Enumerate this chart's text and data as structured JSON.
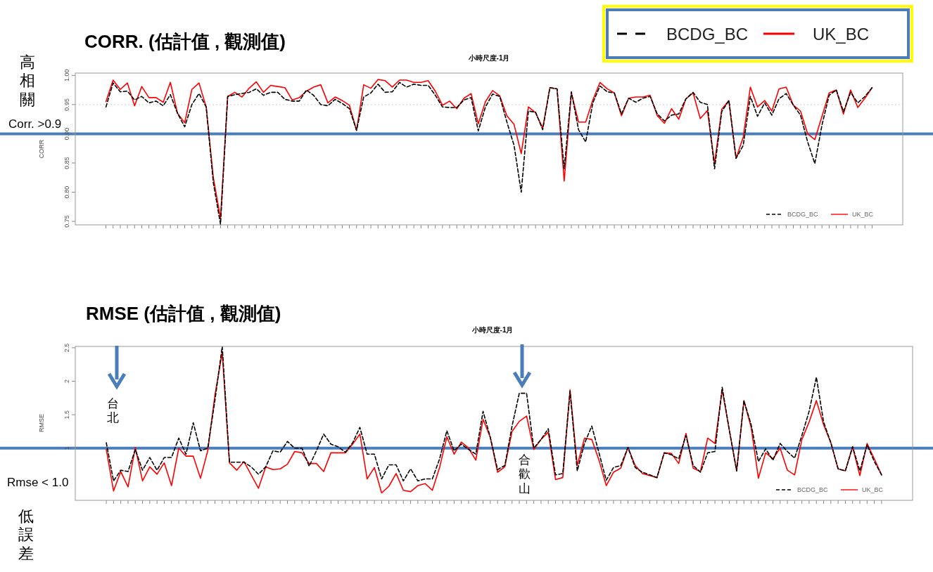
{
  "chart_data": [
    {
      "type": "line",
      "title": "CORR. (估計值 , 觀測值)",
      "subtitle": "小時尺度-1月",
      "ylabel": "CORR",
      "categories": [
        null,
        null,
        null,
        null,
        null,
        null,
        null,
        null,
        null,
        null,
        null,
        null,
        null,
        null,
        null,
        null,
        null,
        null,
        null,
        null,
        null,
        null,
        null,
        null,
        null,
        null,
        null,
        null,
        null,
        null,
        null,
        null,
        null,
        null,
        null,
        null,
        null,
        null,
        null,
        null,
        null,
        null,
        null,
        null,
        null,
        null,
        null,
        null,
        null,
        null,
        null,
        null,
        null,
        null,
        null,
        null,
        null,
        null,
        null,
        null,
        null,
        null,
        null,
        null,
        null,
        null,
        null,
        null,
        null,
        null,
        null,
        null,
        null,
        null,
        null,
        null,
        null,
        null,
        null,
        null,
        null,
        null,
        null,
        null,
        null,
        null,
        null,
        null,
        null,
        null,
        null,
        null,
        null,
        null,
        null,
        null,
        null,
        null,
        null,
        null,
        null,
        null,
        null,
        null,
        null,
        null,
        null,
        null
      ],
      "series": [
        {
          "name": "BCDG_BC",
          "color": "#000000",
          "line_style": "dashed",
          "values": [
            0.946,
            0.987,
            0.972,
            0.973,
            0.958,
            0.964,
            0.953,
            0.956,
            0.948,
            0.967,
            0.935,
            0.912,
            0.95,
            0.969,
            0.946,
            0.816,
            0.745,
            0.964,
            0.967,
            0.969,
            0.971,
            0.977,
            0.966,
            0.971,
            0.971,
            0.959,
            0.956,
            0.956,
            0.975,
            0.966,
            0.95,
            0.948,
            0.959,
            0.952,
            0.943,
            0.906,
            0.963,
            0.97,
            0.985,
            0.971,
            0.972,
            0.988,
            0.98,
            0.985,
            0.983,
            0.983,
            0.966,
            0.946,
            0.945,
            0.945,
            0.958,
            0.962,
            0.905,
            0.946,
            0.968,
            0.964,
            0.92,
            0.88,
            0.8,
            0.939,
            0.937,
            0.907,
            0.979,
            0.977,
            0.84,
            0.972,
            0.907,
            0.886,
            0.953,
            0.982,
            0.972,
            0.97,
            0.934,
            0.961,
            0.954,
            0.961,
            0.964,
            0.934,
            0.922,
            0.932,
            0.934,
            0.96,
            0.971,
            0.954,
            0.95,
            0.84,
            0.938,
            0.957,
            0.858,
            0.88,
            0.964,
            0.93,
            0.953,
            0.932,
            0.96,
            0.969,
            0.949,
            0.932,
            0.886,
            0.849,
            0.915,
            0.966,
            0.975,
            0.938,
            0.971,
            0.953,
            0.964,
            0.979
          ]
        },
        {
          "name": "UK_BC",
          "color": "#ff0000",
          "line_style": "solid",
          "values": [
            0.955,
            0.992,
            0.976,
            0.987,
            0.948,
            0.981,
            0.962,
            0.962,
            0.954,
            0.988,
            0.935,
            0.919,
            0.976,
            0.987,
            0.946,
            0.825,
            0.755,
            0.964,
            0.971,
            0.963,
            0.978,
            0.989,
            0.971,
            0.983,
            0.981,
            0.979,
            0.958,
            0.962,
            0.973,
            0.98,
            0.984,
            0.953,
            0.963,
            0.957,
            0.949,
            0.906,
            0.984,
            0.978,
            0.993,
            0.991,
            0.98,
            0.992,
            0.992,
            0.988,
            0.988,
            0.991,
            0.973,
            0.949,
            0.956,
            0.943,
            0.961,
            0.969,
            0.917,
            0.955,
            0.974,
            0.965,
            0.931,
            0.916,
            0.866,
            0.946,
            0.936,
            0.91,
            0.979,
            0.977,
            0.819,
            0.97,
            0.92,
            0.92,
            0.958,
            0.988,
            0.977,
            0.97,
            0.931,
            0.961,
            0.963,
            0.963,
            0.966,
            0.931,
            0.918,
            0.943,
            0.925,
            0.96,
            0.97,
            0.926,
            0.94,
            0.849,
            0.942,
            0.957,
            0.858,
            0.894,
            0.98,
            0.946,
            0.957,
            0.939,
            0.977,
            0.98,
            0.949,
            0.939,
            0.9,
            0.89,
            0.93,
            0.97,
            0.975,
            0.934,
            0.975,
            0.945,
            0.961,
            0.979
          ]
        }
      ],
      "ylim": [
        0.744,
        1.004
      ],
      "yticks": [
        0.75,
        {
          "value": 0.8,
          "label": "0.80"
        },
        0.85,
        {
          "value": 0.9,
          "label": "0.90"
        },
        0.95,
        {
          "value": 1.0,
          "label": "1.00"
        }
      ],
      "ref_lines": [
        {
          "axis": "y",
          "value": 0.95,
          "color": "#cccccc",
          "line_style": "dotted"
        },
        {
          "axis": "y",
          "value": 0.9,
          "label": "Corr. >0.9",
          "color": "#4a7ebb",
          "line_style": "solid"
        }
      ],
      "annotations": [
        "高相關"
      ],
      "legend": "bottom right",
      "grid": false
    },
    {
      "type": "line",
      "title": "RMSE (估計值 , 觀測值)",
      "subtitle": "小時尺度-1月",
      "ylabel": "RMSE",
      "categories": [
        null,
        null,
        null,
        null,
        null,
        null,
        null,
        null,
        null,
        null,
        null,
        null,
        null,
        null,
        null,
        null,
        null,
        null,
        null,
        null,
        null,
        null,
        null,
        null,
        null,
        null,
        null,
        null,
        null,
        null,
        null,
        null,
        null,
        null,
        null,
        null,
        null,
        null,
        null,
        null,
        null,
        null,
        null,
        null,
        null,
        null,
        null,
        null,
        null,
        null,
        null,
        null,
        null,
        null,
        null,
        null,
        null,
        null,
        null,
        null,
        null,
        null,
        null,
        null,
        null,
        null,
        null,
        null,
        null,
        null,
        null,
        null,
        null,
        null,
        null,
        null,
        null,
        null,
        null,
        null,
        null,
        null,
        null,
        null,
        null,
        null,
        null,
        null,
        null,
        null,
        null,
        null,
        null,
        null,
        null,
        null,
        null,
        null,
        null,
        null,
        null,
        null,
        null,
        null,
        null,
        null,
        null,
        null
      ],
      "series": [
        {
          "name": "BCDG_BC",
          "color": "#000000",
          "line_style": "dashed",
          "values": [
            1.08,
            0.51,
            0.67,
            0.65,
            0.98,
            0.67,
            0.86,
            0.67,
            0.86,
            0.86,
            1.15,
            0.91,
            1.38,
            0.96,
            1.0,
            1.72,
            2.52,
            0.79,
            0.79,
            0.79,
            0.72,
            0.61,
            0.72,
            0.96,
            0.94,
            1.1,
            1.0,
            1.0,
            0.73,
            0.96,
            1.21,
            1.06,
            1.02,
            0.94,
            1.08,
            1.31,
            0.91,
            0.91,
            0.54,
            0.75,
            0.75,
            0.51,
            0.69,
            0.51,
            0.54,
            0.54,
            0.84,
            1.26,
            0.96,
            1.06,
            0.98,
            0.91,
            1.55,
            1.16,
            0.68,
            0.74,
            1.33,
            1.82,
            1.82,
            1.0,
            1.13,
            1.29,
            0.6,
            0.62,
            1.85,
            0.66,
            1.07,
            1.33,
            0.93,
            0.52,
            0.71,
            0.74,
            1.01,
            0.71,
            0.64,
            0.6,
            0.56,
            0.93,
            0.9,
            0.84,
            1.19,
            0.74,
            0.64,
            0.93,
            0.95,
            1.91,
            1.26,
            0.66,
            1.71,
            1.35,
            0.8,
            0.99,
            0.82,
            1.07,
            0.95,
            0.85,
            1.19,
            1.55,
            2.06,
            1.39,
            1.08,
            0.69,
            0.66,
            1.02,
            0.66,
            1.05,
            0.8,
            0.6
          ]
        },
        {
          "name": "UK_BC",
          "color": "#ff0000",
          "line_style": "solid",
          "values": [
            0.98,
            0.36,
            0.65,
            0.42,
            1.01,
            0.51,
            0.72,
            0.61,
            0.78,
            0.44,
            1.0,
            0.88,
            0.88,
            0.55,
            0.96,
            1.8,
            2.43,
            0.78,
            0.67,
            0.8,
            0.6,
            0.4,
            0.72,
            0.68,
            0.69,
            0.76,
            0.95,
            0.93,
            0.77,
            0.77,
            0.65,
            0.93,
            0.93,
            0.93,
            1.06,
            1.21,
            0.54,
            0.71,
            0.33,
            0.43,
            0.62,
            0.37,
            0.35,
            0.44,
            0.47,
            0.37,
            0.71,
            1.17,
            0.91,
            1.09,
            1.0,
            0.82,
            1.43,
            1.16,
            0.64,
            0.72,
            1.25,
            1.4,
            1.48,
            0.98,
            1.13,
            1.24,
            0.53,
            0.56,
            1.87,
            0.74,
            1.15,
            1.13,
            0.82,
            0.44,
            0.64,
            0.7,
            1.01,
            0.74,
            0.62,
            0.59,
            0.56,
            0.93,
            0.92,
            0.77,
            1.22,
            0.7,
            0.65,
            1.15,
            1.07,
            1.87,
            1.26,
            0.66,
            1.71,
            1.31,
            0.55,
            0.93,
            0.84,
            1.0,
            0.67,
            0.6,
            1.13,
            1.39,
            1.71,
            1.35,
            1.08,
            0.69,
            0.66,
            1.02,
            0.59,
            1.07,
            0.84,
            0.6
          ]
        }
      ],
      "ylim": [
        0.22,
        2.52
      ],
      "yticks": [
        1.0,
        1.5,
        2.0,
        2.5
      ],
      "ref_lines": [
        {
          "axis": "y",
          "value": 1.0,
          "label": "Rmse < 1.0",
          "color": "#4a7ebb",
          "line_style": "solid"
        }
      ],
      "annotations": [
        "台北",
        "合歡山",
        "低誤差"
      ],
      "legend": "bottom right",
      "grid": false
    }
  ]
}
